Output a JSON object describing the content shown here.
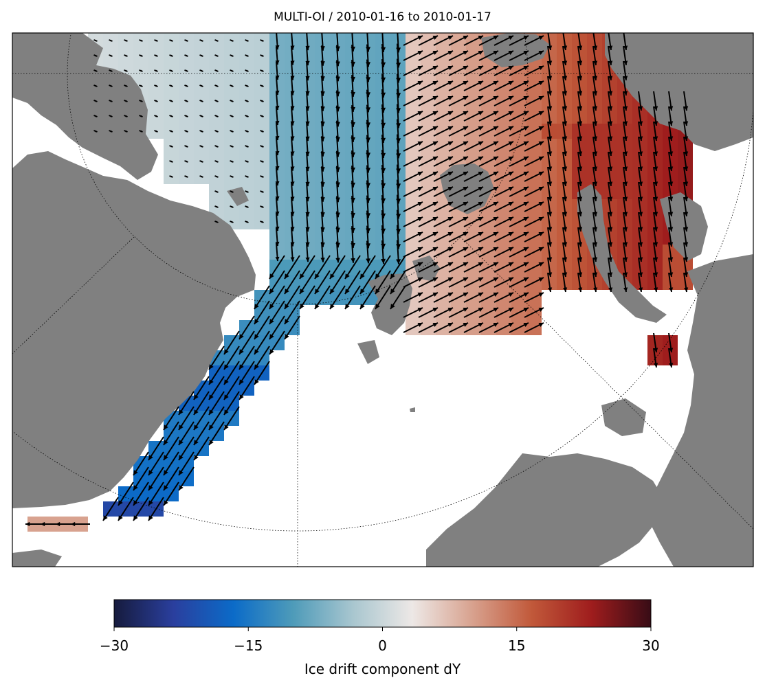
{
  "map": {
    "title": "MULTI-OI / 2010-01-16 to 2010-01-17",
    "variable": "Ice drift component dY",
    "land_color": "#808080",
    "ocean_color": "#ffffff",
    "arrow_color": "#000000"
  },
  "colorbar": {
    "label": "Ice drift component dY",
    "min": -30,
    "max": 30,
    "colormap": "balance",
    "ticks": [
      "−30",
      "−15",
      "0",
      "15",
      "30"
    ],
    "stops": [
      "#161b3d",
      "#2a3f9e",
      "#0b6bc8",
      "#4e9bb9",
      "#a8c6cf",
      "#ede8e6",
      "#d8a28f",
      "#c1593a",
      "#9f1d1d",
      "#380c16"
    ]
  }
}
